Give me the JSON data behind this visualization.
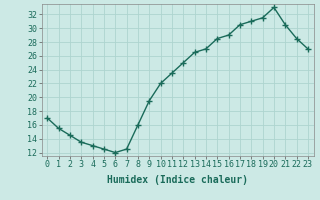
{
  "x": [
    0,
    1,
    2,
    3,
    4,
    5,
    6,
    7,
    8,
    9,
    10,
    11,
    12,
    13,
    14,
    15,
    16,
    17,
    18,
    19,
    20,
    21,
    22,
    23
  ],
  "y": [
    17,
    15.5,
    14.5,
    13.5,
    13,
    12.5,
    12,
    12.5,
    16,
    19.5,
    22,
    23.5,
    25,
    26.5,
    27,
    28.5,
    29,
    30.5,
    31,
    31.5,
    33,
    30.5,
    28.5,
    27
  ],
  "line_color": "#1a6b5a",
  "marker": "+",
  "bg_color": "#cce9e5",
  "grid_color": "#aed4cf",
  "xlabel": "Humidex (Indice chaleur)",
  "yticks": [
    12,
    14,
    16,
    18,
    20,
    22,
    24,
    26,
    28,
    30,
    32
  ],
  "xticks": [
    0,
    1,
    2,
    3,
    4,
    5,
    6,
    7,
    8,
    9,
    10,
    11,
    12,
    13,
    14,
    15,
    16,
    17,
    18,
    19,
    20,
    21,
    22,
    23
  ],
  "ylim": [
    11.5,
    33.5
  ],
  "xlim": [
    -0.5,
    23.5
  ],
  "xlabel_fontsize": 7,
  "tick_fontsize": 6,
  "line_width": 1.0,
  "marker_size": 4
}
